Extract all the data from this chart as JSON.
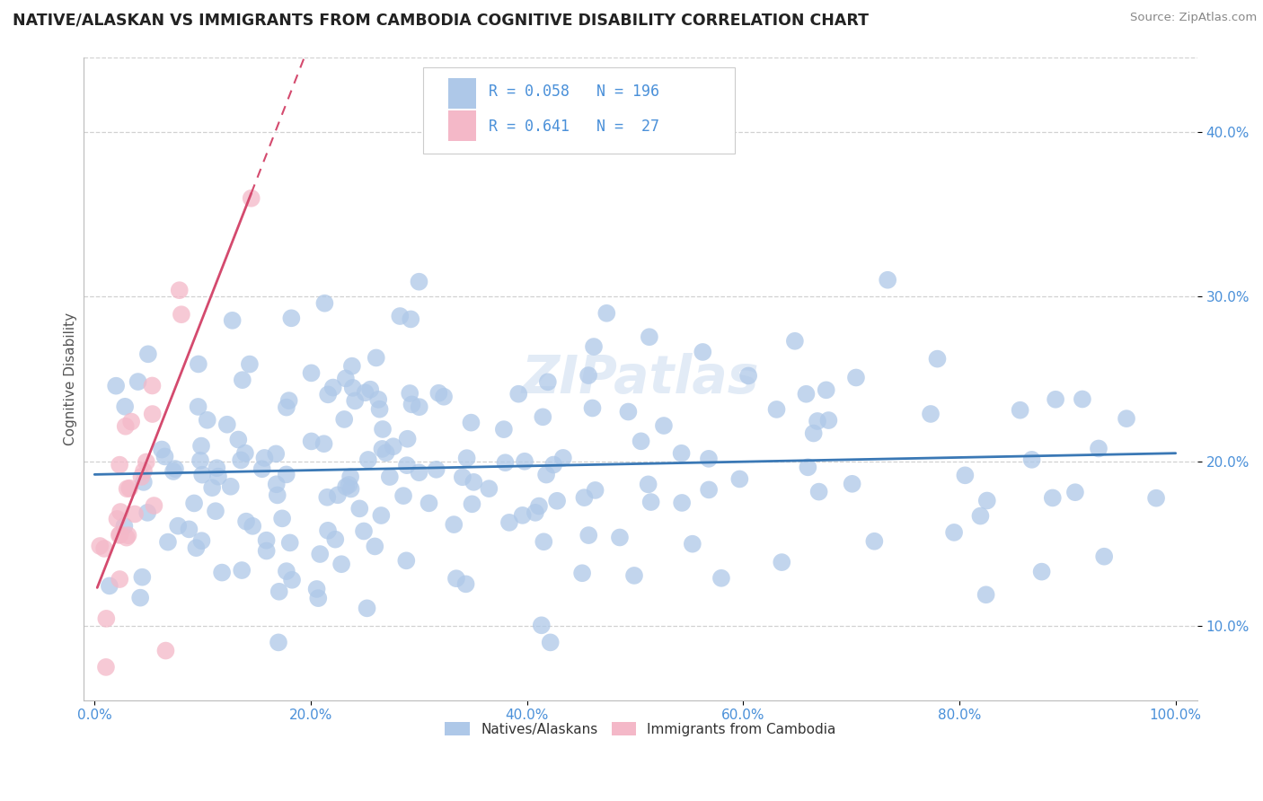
{
  "title": "NATIVE/ALASKAN VS IMMIGRANTS FROM CAMBODIA COGNITIVE DISABILITY CORRELATION CHART",
  "source": "Source: ZipAtlas.com",
  "ylabel": "Cognitive Disability",
  "xlim": [
    -0.01,
    1.02
  ],
  "ylim": [
    0.055,
    0.445
  ],
  "xticks": [
    0.0,
    0.2,
    0.4,
    0.6,
    0.8,
    1.0
  ],
  "yticks": [
    0.1,
    0.2,
    0.3,
    0.4
  ],
  "xticklabels": [
    "0.0%",
    "20.0%",
    "40.0%",
    "60.0%",
    "80.0%",
    "100.0%"
  ],
  "yticklabels": [
    "10.0%",
    "20.0%",
    "30.0%",
    "40.0%"
  ],
  "native_color": "#aec8e8",
  "native_edge_color": "#aec8e8",
  "cambodia_color": "#f4b8c8",
  "cambodia_edge_color": "#f4b8c8",
  "native_R": 0.058,
  "native_N": 196,
  "cambodia_R": 0.641,
  "cambodia_N": 27,
  "native_line_color": "#3a78b5",
  "cambodia_line_color": "#d44a6e",
  "watermark": "ZIPatlas",
  "tick_label_color": "#4a90d9",
  "grid_color": "#cccccc",
  "legend_R_color": "#4a90d9",
  "legend_label_color": "#333333"
}
